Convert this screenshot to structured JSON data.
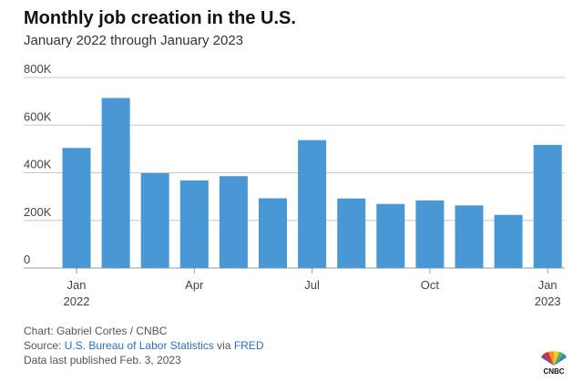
{
  "header": {
    "title": "Monthly job creation in the U.S.",
    "subtitle": "January 2022 through January 2023"
  },
  "footer": {
    "credit": "Chart: Gabriel Cortes / CNBC",
    "source_prefix": "Source: ",
    "source_link_1": "U.S. Bureau of Labor Statistics",
    "source_via": " via ",
    "source_link_2": "FRED",
    "published": "Data last published Feb. 3, 2023"
  },
  "logo": {
    "icon": "cnbc-peacock-logo",
    "text": "CNBC"
  },
  "colors": {
    "bar": "#4a97d6",
    "grid": "#c8c8c8",
    "text": "#444444"
  },
  "chart_data": {
    "type": "bar",
    "title": "Monthly job creation in the U.S.",
    "subtitle": "January 2022 through January 2023",
    "categories": [
      "Jan 2022",
      "Feb 2022",
      "Mar 2022",
      "Apr 2022",
      "May 2022",
      "Jun 2022",
      "Jul 2022",
      "Aug 2022",
      "Sep 2022",
      "Oct 2022",
      "Nov 2022",
      "Dec 2022",
      "Jan 2023"
    ],
    "values": [
      504000,
      714000,
      398000,
      368000,
      386000,
      293000,
      537000,
      292000,
      269000,
      284000,
      263000,
      223000,
      517000
    ],
    "ylim": [
      0,
      800000
    ],
    "yticks": [
      0,
      200000,
      400000,
      600000,
      800000
    ],
    "ytick_labels": [
      "0",
      "200K",
      "400K",
      "600K",
      "800K"
    ],
    "xtick_labels": [
      {
        "index": 0,
        "line1": "Jan",
        "line2": "2022"
      },
      {
        "index": 3,
        "line1": "Apr",
        "line2": ""
      },
      {
        "index": 6,
        "line1": "Jul",
        "line2": ""
      },
      {
        "index": 9,
        "line1": "Oct",
        "line2": ""
      },
      {
        "index": 12,
        "line1": "Jan",
        "line2": "2023"
      }
    ],
    "grid": true
  }
}
